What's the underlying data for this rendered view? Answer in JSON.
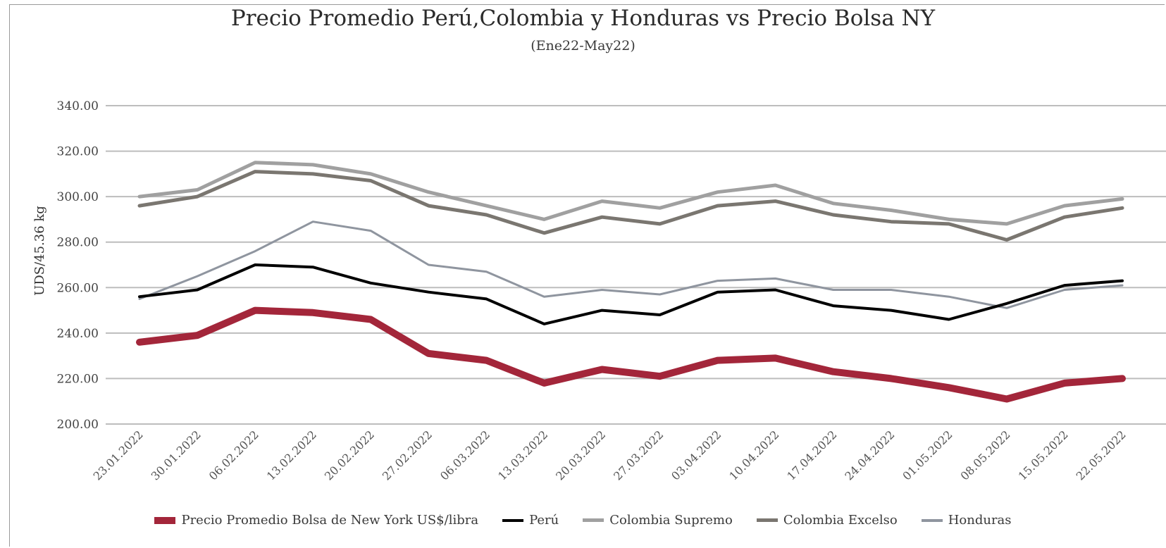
{
  "chart_data": {
    "type": "line",
    "title": "Precio Promedio Perú,Colombia y Honduras vs Precio Bolsa NY",
    "subtitle": "(Ene22-May22)",
    "ylabel": "UDS/45.36 kg",
    "xlabel": "",
    "ylim": [
      200,
      340
    ],
    "yticks": [
      "200.00",
      "220.00",
      "240.00",
      "260.00",
      "280.00",
      "300.00",
      "320.00",
      "340.00"
    ],
    "grid": true,
    "legend_position": "bottom",
    "categories": [
      "23.01.2022",
      "30.01.2022",
      "06.02.2022",
      "13.02.2022",
      "20.02.2022",
      "27.02.2022",
      "06.03.2022",
      "13.03.2022",
      "20.03.2022",
      "27.03.2022",
      "03.04.2022",
      "10.04.2022",
      "17.04.2022",
      "24.04.2022",
      "01.05.2022",
      "08.05.2022",
      "15.05.2022",
      "22.05.2022"
    ],
    "series": [
      {
        "name": "Precio Promedio Bolsa de New York US$/libra",
        "color": "#a3263a",
        "values": [
          236,
          239,
          250,
          249,
          246,
          231,
          228,
          218,
          224,
          221,
          228,
          229,
          223,
          220,
          216,
          211,
          218,
          220
        ]
      },
      {
        "name": "Perú",
        "color": "#000000",
        "values": [
          256,
          259,
          270,
          269,
          262,
          258,
          255,
          244,
          250,
          248,
          258,
          259,
          252,
          250,
          246,
          253,
          261,
          263
        ]
      },
      {
        "name": "Colombia Supremo",
        "color": "#a0a0a0",
        "values": [
          300,
          303,
          315,
          314,
          310,
          302,
          296,
          290,
          298,
          295,
          302,
          305,
          297,
          294,
          290,
          288,
          296,
          299
        ]
      },
      {
        "name": "Colombia Excelso",
        "color": "#7a7670",
        "values": [
          296,
          300,
          311,
          310,
          307,
          296,
          292,
          284,
          291,
          288,
          296,
          298,
          292,
          289,
          288,
          281,
          291,
          295
        ]
      },
      {
        "name": "Honduras",
        "color": "#8f959f",
        "values": [
          255,
          265,
          276,
          289,
          285,
          270,
          267,
          256,
          259,
          257,
          263,
          264,
          259,
          259,
          256,
          251,
          259,
          261
        ]
      }
    ]
  }
}
